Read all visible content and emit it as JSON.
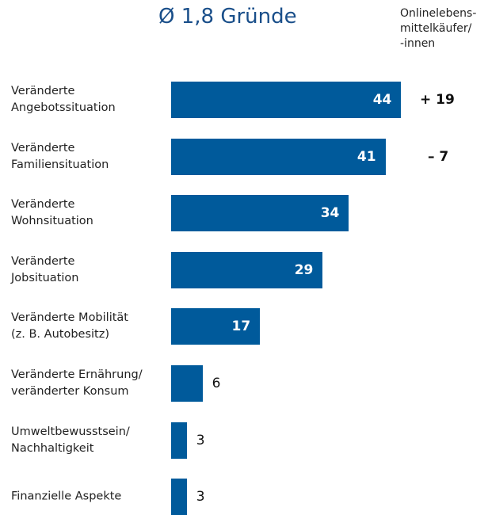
{
  "chart_data": {
    "type": "bar",
    "title": "Ø 1,8 Gründe",
    "note": "Onlinelebens-\nmittelkäufer/\n-innen",
    "categories": [
      "Veränderte\nAngebotssituation",
      "Veränderte\nFamiliensituation",
      "Veränderte\nWohnsituation",
      "Veränderte\nJobsituation",
      "Veränderte Mobilität\n(z. B. Autobesitz)",
      "Veränderte Ernährung/\nveränderter Konsum",
      "Umweltbewusstsein/\nNachhaltigkeit",
      "Finanzielle Aspekte"
    ],
    "values": [
      44,
      41,
      34,
      29,
      17,
      6,
      3,
      3
    ],
    "color": "#005a9b",
    "annotations": [
      "+ 19",
      "– 7"
    ]
  }
}
